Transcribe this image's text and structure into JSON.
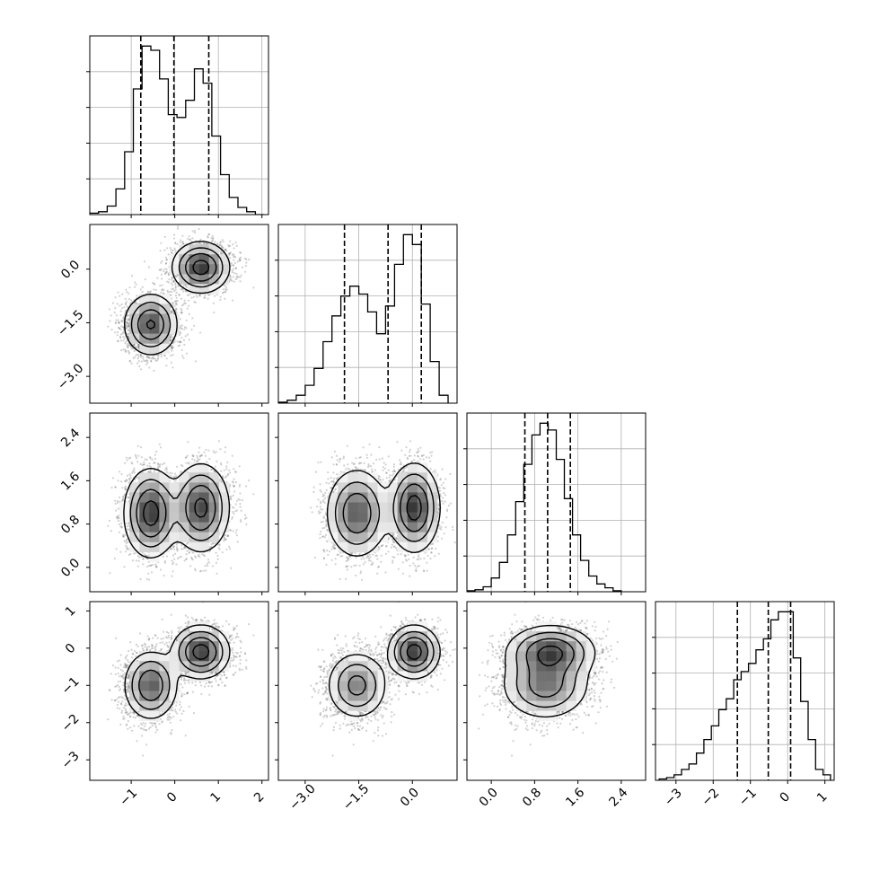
{
  "chart_data": {
    "type": "scatter",
    "layout": "corner-plot",
    "parameters": 4,
    "grid": true,
    "colors": {
      "line": "#000000",
      "points": "#5a5a5a",
      "grid": "#b0b0b0"
    },
    "ranges": [
      [
        -1.95,
        2.15
      ],
      [
        -3.75,
        1.25
      ],
      [
        -0.45,
        2.85
      ],
      [
        -3.55,
        1.25
      ]
    ],
    "ticks": [
      {
        "values": [
          -1,
          0,
          1,
          2
        ],
        "labels": [
          "−1",
          "0",
          "1",
          "2"
        ]
      },
      {
        "values": [
          -3.0,
          -1.5,
          0.0
        ],
        "labels": [
          "−3.0",
          "−1.5",
          "0.0"
        ]
      },
      {
        "values": [
          0.0,
          0.8,
          1.6,
          2.4
        ],
        "labels": [
          "0.0",
          "0.8",
          "1.6",
          "2.4"
        ]
      },
      {
        "values": [
          -3,
          -2,
          -1,
          0,
          1
        ],
        "labels": [
          "−3",
          "−2",
          "−1",
          "0",
          "1"
        ]
      }
    ],
    "quantile_lines": [
      [
        -0.78,
        -0.02,
        0.78
      ],
      [
        -1.9,
        -0.68,
        0.25
      ],
      [
        0.62,
        1.04,
        1.46
      ],
      [
        -1.35,
        -0.52,
        0.08
      ]
    ],
    "histograms": [
      {
        "edges": [
          -1.95,
          -1.75,
          -1.55,
          -1.35,
          -1.15,
          -0.95,
          -0.75,
          -0.55,
          -0.35,
          -0.15,
          0.05,
          0.25,
          0.45,
          0.65,
          0.85,
          1.05,
          1.25,
          1.45,
          1.65,
          1.85,
          2.05
        ],
        "counts": [
          1,
          2,
          6,
          18,
          44,
          88,
          118,
          115,
          95,
          70,
          68,
          80,
          102,
          92,
          55,
          28,
          12,
          5,
          2,
          0
        ]
      },
      {
        "edges": [
          -3.75,
          -3.5,
          -3.25,
          -3.0,
          -2.75,
          -2.5,
          -2.25,
          -2.0,
          -1.75,
          -1.5,
          -1.25,
          -1.0,
          -0.75,
          -0.5,
          -0.25,
          0.0,
          0.25,
          0.5,
          0.75,
          1.0
        ],
        "counts": [
          1,
          3,
          8,
          18,
          35,
          62,
          88,
          108,
          118,
          110,
          92,
          70,
          98,
          140,
          170,
          160,
          100,
          42,
          8
        ]
      },
      {
        "edges": [
          -0.45,
          -0.3,
          -0.15,
          0.0,
          0.15,
          0.3,
          0.45,
          0.6,
          0.75,
          0.9,
          1.05,
          1.2,
          1.35,
          1.5,
          1.65,
          1.8,
          1.95,
          2.1,
          2.25,
          2.4
        ],
        "counts": [
          1,
          2,
          5,
          14,
          30,
          58,
          92,
          130,
          160,
          172,
          165,
          135,
          95,
          58,
          32,
          16,
          8,
          4,
          1
        ]
      },
      {
        "edges": [
          -3.45,
          -3.25,
          -3.05,
          -2.85,
          -2.65,
          -2.45,
          -2.25,
          -2.05,
          -1.85,
          -1.65,
          -1.45,
          -1.25,
          -1.05,
          -0.85,
          -0.65,
          -0.45,
          -0.25,
          -0.05,
          0.15,
          0.35,
          0.55,
          0.75,
          0.95,
          1.15
        ],
        "counts": [
          1,
          2,
          4,
          8,
          12,
          20,
          30,
          40,
          52,
          60,
          74,
          80,
          86,
          96,
          104,
          118,
          124,
          124,
          90,
          58,
          30,
          8,
          4
        ]
      }
    ],
    "components": [
      {
        "weight": 0.5,
        "mean": [
          -0.55,
          -1.55,
          1.0,
          -1.0
        ],
        "std": [
          0.3,
          0.42,
          0.4,
          0.45
        ]
      },
      {
        "weight": 0.5,
        "mean": [
          0.6,
          0.05,
          1.1,
          -0.1
        ],
        "std": [
          0.32,
          0.35,
          0.4,
          0.35
        ]
      }
    ]
  }
}
